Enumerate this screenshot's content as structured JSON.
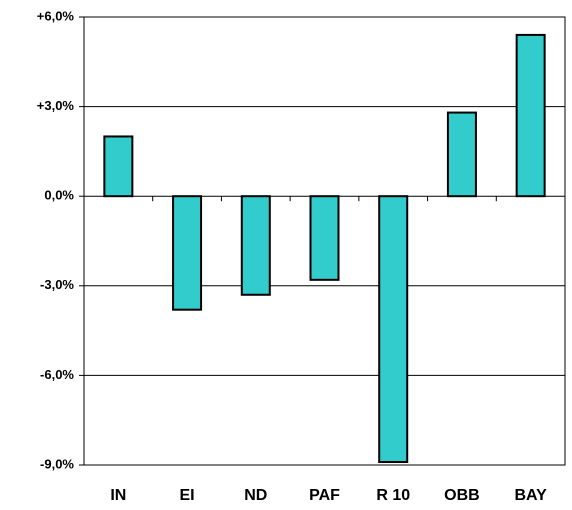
{
  "chart_data": {
    "type": "bar",
    "categories": [
      "IN",
      "EI",
      "ND",
      "PAF",
      "R 10",
      "OBB",
      "BAY"
    ],
    "values": [
      2.0,
      -3.8,
      -3.3,
      -2.8,
      -8.9,
      2.8,
      5.4
    ],
    "color": "#33cccc",
    "ylim": [
      -9,
      6
    ],
    "yticks": [
      {
        "value": -9,
        "label": "-9,0%"
      },
      {
        "value": -6,
        "label": "-6,0%"
      },
      {
        "value": -3,
        "label": "-3,0%"
      },
      {
        "value": 0,
        "label": "0,0%"
      },
      {
        "value": 3,
        "label": "+3,0%"
      },
      {
        "value": 6,
        "label": "+6,0%"
      }
    ],
    "grid": true
  }
}
